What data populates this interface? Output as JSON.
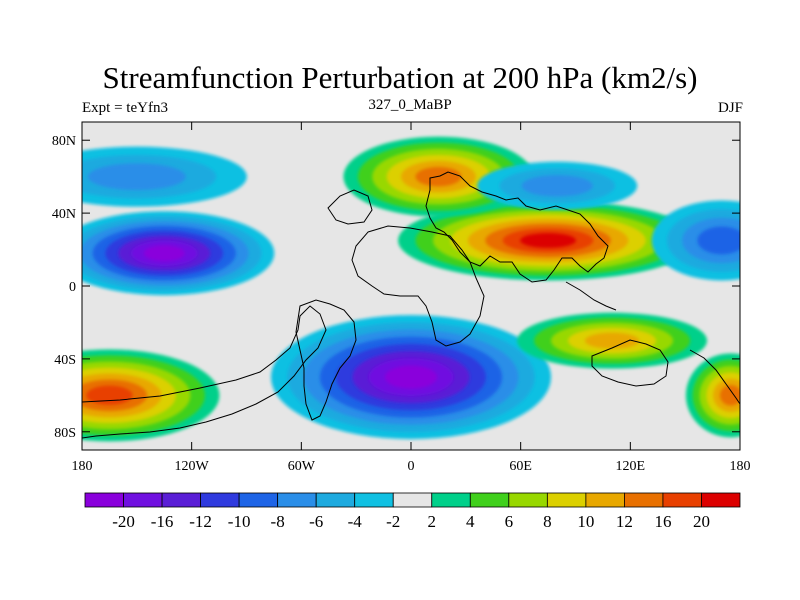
{
  "chart_data": {
    "type": "heatmap",
    "title": "Streamfunction Perturbation at 200 hPa (km2/s)",
    "subtitle_left": "Expt = teYfn3",
    "subtitle_center": "327_0_MaBP",
    "subtitle_right": "DJF",
    "xlabel": "",
    "ylabel": "",
    "x_ticks": [
      "180",
      "120W",
      "60W",
      "0",
      "60E",
      "120E",
      "180"
    ],
    "y_ticks": [
      "80N",
      "40N",
      "0",
      "40S",
      "80S"
    ],
    "lon_range": [
      -180,
      180
    ],
    "lat_range": [
      -90,
      90
    ],
    "colorbar": {
      "levels": [
        "-20",
        "-16",
        "-12",
        "-10",
        "-8",
        "-6",
        "-4",
        "-2",
        "2",
        "4",
        "6",
        "8",
        "10",
        "12",
        "16",
        "20"
      ],
      "colors": [
        "#8a00dc",
        "#7010e0",
        "#5a1ed6",
        "#2f3ade",
        "#1e64e6",
        "#2a8ee8",
        "#1eaadf",
        "#10c0e2",
        "#e6e6e6",
        "#00d08a",
        "#40d01c",
        "#98d800",
        "#dcd000",
        "#e8a800",
        "#e87000",
        "#e84000",
        "#dc0000"
      ]
    },
    "features": [
      {
        "name": "Purple low, central Pacific",
        "lon": -135,
        "lat": 18,
        "value": -20
      },
      {
        "name": "Purple low, South Atlantic / southern Africa",
        "lon": 0,
        "lat": -50,
        "value": -20
      },
      {
        "name": "Red high, North Africa / Asia",
        "lon": 75,
        "lat": 25,
        "value": 20
      },
      {
        "name": "Orange high, Europe / North Atlantic",
        "lon": 15,
        "lat": 60,
        "value": 12
      },
      {
        "name": "Red high, South Pacific",
        "lon": -165,
        "lat": -60,
        "value": 16
      },
      {
        "name": "Orange high, South Indian Ocean",
        "lon": 110,
        "lat": -30,
        "value": 10
      },
      {
        "name": "Orange high, far East South Pacific",
        "lon": 175,
        "lat": -60,
        "value": 12
      },
      {
        "name": "Blue low, Arctic / North Pacific",
        "lon": -150,
        "lat": 60,
        "value": -6
      },
      {
        "name": "Blue low, Siberia",
        "lon": 80,
        "lat": 55,
        "value": -6
      },
      {
        "name": "Blue low, western Pacific",
        "lon": 170,
        "lat": 25,
        "value": -8
      }
    ]
  }
}
